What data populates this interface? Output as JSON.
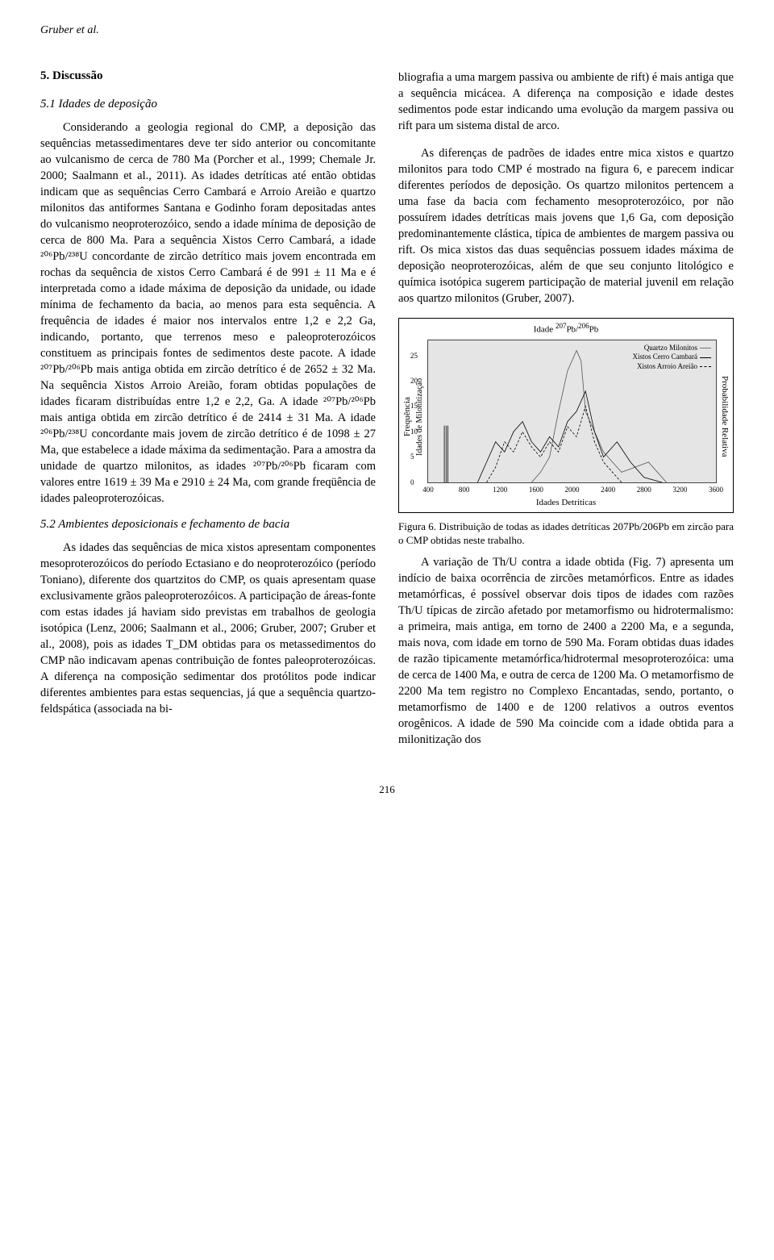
{
  "header": {
    "author": "Gruber et al."
  },
  "left": {
    "section_title": "5. Discussão",
    "sub1_title": "5.1 Idades de deposição",
    "para1": "Considerando a geologia regional do CMP, a deposição das sequências metassedimentares deve ter sido anterior ou concomitante ao vulcanismo de cerca de 780 Ma (Porcher et al., 1999; Chemale Jr. 2000; Saalmann et al., 2011). As idades detríticas até então obtidas indicam que as sequências Cerro Cambará e Arroio Areião e quartzo milonitos das antiformes Santana e Godinho foram depositadas antes do vulcanismo neoproterozóico, sendo a idade mínima de deposição de cerca de 800 Ma. Para a sequência Xistos Cerro Cambará, a idade ²⁰⁶Pb/²³⁸U concordante de zircão detrítico mais jovem encontrada em rochas da sequência de xistos Cerro Cambará é de 991 ± 11 Ma e é interpretada como a idade máxima de deposição da unidade, ou idade mínima de fechamento da bacia, ao menos para esta sequência. A frequência de idades é maior nos intervalos entre 1,2 e 2,2 Ga, indicando, portanto, que terrenos meso e paleoproterozóicos constituem as principais fontes de sedimentos deste pacote. A idade ²⁰⁷Pb/²⁰⁶Pb  mais antiga obtida em zircão detrítico é de 2652 ± 32 Ma. Na sequência Xistos Arroio Areião, foram obtidas populações de idades ficaram distribuídas entre 1,2 e 2,2, Ga. A idade ²⁰⁷Pb/²⁰⁶Pb mais antiga obtida em zircão detrítico é de 2414 ± 31 Ma. A idade ²⁰⁶Pb/²³⁸U concordante mais jovem de zircão detrítico é de 1098 ± 27 Ma, que estabelece a idade máxima da sedimentação. Para a amostra da unidade de quartzo milonitos, as idades ²⁰⁷Pb/²⁰⁶Pb ficaram com valores entre 1619 ± 39 Ma e 2910 ± 24 Ma, com grande freqüência de idades paleoproterozóicas.",
    "sub2_title": "5.2  Ambientes deposicionais e fechamento de bacia",
    "para2": "As idades das sequências de mica xistos apresentam componentes mesoproterozóicos do período Ectasiano e do neoproterozóico (período Toniano), diferente dos quartzitos do CMP, os quais apresentam quase exclusivamente grãos paleoproterozóicos. A participação de áreas-fonte com estas idades já haviam sido previstas em trabalhos de geologia isotópica (Lenz, 2006; Saalmann et al., 2006; Gruber, 2007; Gruber et al., 2008), pois as idades T_DM obtidas para os metassedimentos do CMP não indicavam apenas contribuição de fontes paleoproterozóicas. A diferença na composição sedimentar dos protólitos pode indicar diferentes ambientes para estas sequencias, já que a sequência quartzo-feldspática (associada na bi-"
  },
  "right": {
    "para1": "bliografia a uma margem passiva ou ambiente de rift) é mais antiga que a sequência micácea. A diferença na composição e idade destes sedimentos pode estar indicando uma evolução da margem passiva ou rift para um sistema distal de arco.",
    "para2": "As diferenças de padrões de idades entre mica xistos e quartzo milonitos para todo CMP é mostrado na figura 6, e parecem indicar diferentes períodos de deposição. Os quartzo milonitos pertencem a uma fase da bacia com fechamento mesoproterozóico, por não possuírem idades detríticas mais jovens que 1,6 Ga, com deposição predominantemente clástica, típica de ambientes de margem passiva ou rift. Os mica xistos das duas sequências possuem idades máxima de deposição neoproterozóicas, além de que seu conjunto litológico e química isotópica sugerem participação de material juvenil em relação aos quartzo milonitos (Gruber, 2007).",
    "para3": "A variação de Th/U contra a idade obtida (Fig. 7) apresenta um indício de baixa ocorrência de zircões metamórficos.  Entre as idades metamórficas, é possível observar dois tipos de idades com razões Th/U típicas de zircão afetado por metamorfismo ou hidrotermalismo: a primeira, mais antiga, em torno de 2400 a 2200 Ma, e a segunda, mais nova, com idade em torno de 590 Ma. Foram obtidas duas idades de razão tipicamente metamórfica/hidrotermal mesoproterozóica: uma de cerca de 1400 Ma, e outra de cerca de 1200 Ma. O metamorfismo de 2200 Ma tem registro no Complexo Encantadas, sendo, portanto, o metamorfismo de 1400 e de 1200 relativos a outros eventos orogênicos. A idade de 590 Ma coincide com a idade obtida para a milonitização dos"
  },
  "figure6": {
    "type": "line",
    "title_prefix": "Idade ",
    "title_sup1": "207",
    "title_mid": "Pb/",
    "title_sup2": "206",
    "title_suffix": "Pb",
    "ylabel_left": "Frequência",
    "ylabel_left2": "Idades de Milonitização",
    "ylabel_right": "Probabilidade Relativa",
    "xlabel": "Idades Detríticas",
    "xticks": [
      400,
      800,
      1200,
      1600,
      2000,
      2400,
      2800,
      3200,
      3600
    ],
    "yticks": [
      0,
      5,
      10,
      15,
      20,
      25
    ],
    "xlim": [
      400,
      3600
    ],
    "ylim": [
      0,
      28
    ],
    "legend": {
      "a": "Quartzo Milonitos",
      "b": "Xistos Cerro Cambará",
      "c": "Xistos Arroio Areião"
    },
    "bg": "#e5e5e5",
    "colors": {
      "qm": "#555555",
      "xcc": "#000000",
      "xaa": "#000000"
    },
    "milon_bars_x": [
      580,
      600,
      620
    ],
    "series_qm": [
      [
        1550,
        0
      ],
      [
        1650,
        2
      ],
      [
        1750,
        5
      ],
      [
        1850,
        14
      ],
      [
        1950,
        22
      ],
      [
        2050,
        26
      ],
      [
        2100,
        24
      ],
      [
        2150,
        14
      ],
      [
        2250,
        10
      ],
      [
        2350,
        6
      ],
      [
        2450,
        4
      ],
      [
        2550,
        2
      ],
      [
        2700,
        3
      ],
      [
        2850,
        4
      ],
      [
        2950,
        2
      ],
      [
        3050,
        0
      ]
    ],
    "series_xcc": [
      [
        950,
        0
      ],
      [
        1000,
        2
      ],
      [
        1050,
        4
      ],
      [
        1150,
        8
      ],
      [
        1250,
        6
      ],
      [
        1350,
        10
      ],
      [
        1450,
        12
      ],
      [
        1550,
        8
      ],
      [
        1650,
        6
      ],
      [
        1750,
        9
      ],
      [
        1850,
        7
      ],
      [
        1950,
        12
      ],
      [
        2050,
        14
      ],
      [
        2150,
        18
      ],
      [
        2250,
        10
      ],
      [
        2350,
        5
      ],
      [
        2500,
        8
      ],
      [
        2650,
        4
      ],
      [
        2800,
        1
      ],
      [
        3000,
        0
      ]
    ],
    "series_xaa": [
      [
        1050,
        0
      ],
      [
        1150,
        3
      ],
      [
        1250,
        8
      ],
      [
        1350,
        6
      ],
      [
        1450,
        10
      ],
      [
        1550,
        7
      ],
      [
        1650,
        5
      ],
      [
        1750,
        8
      ],
      [
        1850,
        6
      ],
      [
        1950,
        11
      ],
      [
        2050,
        9
      ],
      [
        2150,
        15
      ],
      [
        2250,
        8
      ],
      [
        2350,
        4
      ],
      [
        2450,
        2
      ],
      [
        2550,
        0
      ]
    ],
    "caption": "Figura 6. Distribuição de todas as idades detríticas 207Pb/206Pb em zircão para o CMP obtidas neste trabalho."
  },
  "page_number": "216"
}
